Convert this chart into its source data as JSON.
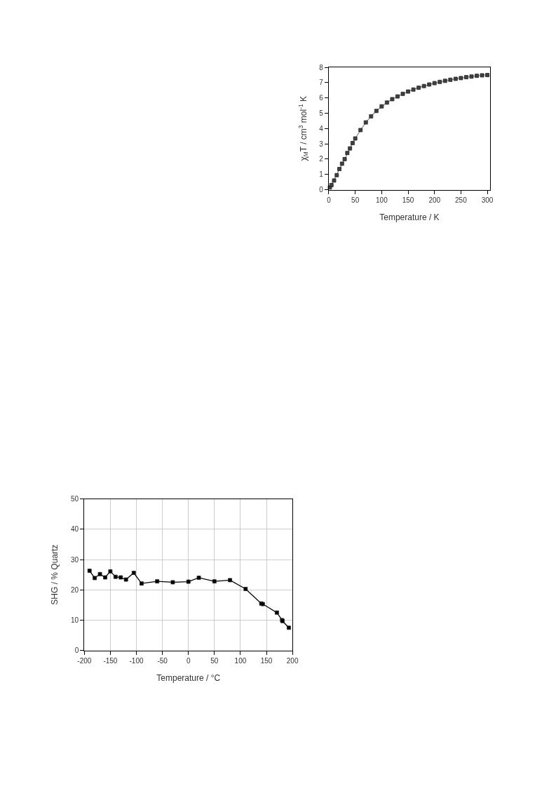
{
  "chart_data": [
    {
      "type": "scatter",
      "xlabel": "Temperature / K",
      "ylabel": "χ$_{M}$T / cm$^{3}$ mol$^{-1}$ K",
      "xlim": [
        0,
        305
      ],
      "ylim": [
        0,
        8
      ],
      "xticks": [
        0,
        50,
        100,
        150,
        200,
        250,
        300
      ],
      "yticks": [
        0,
        1,
        2,
        3,
        4,
        5,
        6,
        7,
        8
      ],
      "grid": false,
      "series": [
        {
          "type": "line",
          "marker": "none",
          "color": "#8c8c8c",
          "x": [
            2,
            10,
            20,
            30,
            40,
            50,
            60,
            70,
            80,
            90,
            100,
            120,
            140,
            160,
            180,
            200,
            220,
            240,
            260,
            280,
            300
          ],
          "values": [
            0.2,
            0.65,
            1.35,
            2.0,
            2.7,
            3.35,
            3.9,
            4.4,
            4.8,
            5.15,
            5.45,
            5.92,
            6.27,
            6.55,
            6.78,
            6.97,
            7.12,
            7.25,
            7.36,
            7.45,
            7.52
          ]
        },
        {
          "type": "scatter",
          "marker": "square",
          "color": "#404040",
          "x": [
            2,
            5,
            10,
            15,
            20,
            25,
            30,
            35,
            40,
            45,
            50,
            60,
            70,
            80,
            90,
            100,
            110,
            120,
            130,
            140,
            150,
            160,
            170,
            180,
            190,
            200,
            210,
            220,
            230,
            240,
            250,
            260,
            270,
            280,
            290,
            300
          ],
          "values": [
            0.15,
            0.3,
            0.6,
            0.95,
            1.35,
            1.7,
            2.0,
            2.4,
            2.7,
            3.05,
            3.35,
            3.9,
            4.4,
            4.8,
            5.15,
            5.45,
            5.7,
            5.92,
            6.1,
            6.27,
            6.42,
            6.55,
            6.67,
            6.78,
            6.88,
            6.97,
            7.05,
            7.12,
            7.19,
            7.25,
            7.3,
            7.36,
            7.4,
            7.45,
            7.48,
            7.5
          ]
        }
      ]
    },
    {
      "type": "line",
      "xlabel": "Temperature / °C",
      "ylabel": "SHG / % Quartz",
      "xlim": [
        -200,
        200
      ],
      "ylim": [
        0,
        50
      ],
      "xticks": [
        -200,
        -150,
        -100,
        -50,
        0,
        50,
        100,
        150,
        200
      ],
      "yticks": [
        0,
        10,
        20,
        30,
        40,
        50
      ],
      "grid": true,
      "marker": "square",
      "line_style": "solid",
      "series": [
        {
          "color": "#000000",
          "x": [
            -190,
            -180,
            -170,
            -160,
            -150,
            -140,
            -130,
            -120,
            -105,
            -90,
            -60,
            -30,
            0,
            20,
            50,
            80,
            110,
            140,
            143,
            170,
            180,
            181,
            193
          ],
          "values": [
            26.3,
            23.9,
            25.2,
            24.1,
            26.1,
            24.3,
            24.1,
            23.4,
            25.6,
            22.1,
            22.8,
            22.5,
            22.7,
            24.0,
            22.8,
            23.2,
            20.3,
            15.5,
            15.3,
            12.5,
            10.0,
            9.7,
            7.5
          ]
        }
      ]
    }
  ]
}
